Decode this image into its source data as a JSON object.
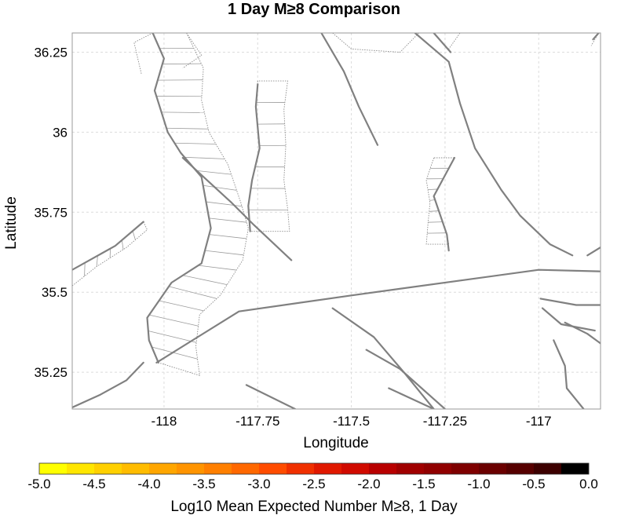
{
  "title": "1 Day M≥8 Comparison",
  "map": {
    "xlabel": "Longitude",
    "ylabel": "Latitude",
    "xlim": [
      -118.245,
      -116.835
    ],
    "ylim": [
      35.135,
      36.31
    ],
    "x_ticks": [
      {
        "value": -118,
        "label": "-118"
      },
      {
        "value": -117.75,
        "label": "-117.75"
      },
      {
        "value": -117.5,
        "label": "-117.5"
      },
      {
        "value": -117.25,
        "label": "-117.25"
      },
      {
        "value": -117,
        "label": "-117"
      }
    ],
    "y_ticks": [
      {
        "value": 35.25,
        "label": "35.25"
      },
      {
        "value": 35.5,
        "label": "35.5"
      },
      {
        "value": 35.75,
        "label": "35.75"
      },
      {
        "value": 36,
        "label": "36"
      },
      {
        "value": 36.25,
        "label": "36.25"
      }
    ],
    "grid": true,
    "colors": {
      "fault": "#808080",
      "outline": "#8a8a8a",
      "grid": "#dcdcdc",
      "frame": "#9a9a9a"
    },
    "faults": [
      [
        [
          -118.03,
          36.31
        ],
        [
          -118.0,
          36.23
        ],
        [
          -118.025,
          36.13
        ],
        [
          -117.99,
          36.0
        ],
        [
          -117.955,
          35.935
        ],
        [
          -117.9,
          35.86
        ],
        [
          -117.875,
          35.7
        ],
        [
          -117.9,
          35.59
        ],
        [
          -117.98,
          35.53
        ],
        [
          -118.045,
          35.42
        ],
        [
          -118.04,
          35.35
        ],
        [
          -118.015,
          35.28
        ]
      ],
      [
        [
          -117.95,
          35.92
        ],
        [
          -117.82,
          35.78
        ],
        [
          -117.76,
          35.71
        ],
        [
          -117.66,
          35.6
        ]
      ],
      [
        [
          -117.75,
          36.15
        ],
        [
          -117.755,
          36.08
        ],
        [
          -117.745,
          35.95
        ],
        [
          -117.765,
          35.85
        ],
        [
          -117.775,
          35.77
        ],
        [
          -117.77,
          35.69
        ]
      ],
      [
        [
          -117.58,
          36.31
        ],
        [
          -117.52,
          36.19
        ],
        [
          -117.48,
          36.08
        ],
        [
          -117.43,
          35.96
        ]
      ],
      [
        [
          -117.33,
          36.31
        ],
        [
          -117.24,
          36.22
        ],
        [
          -117.21,
          36.09
        ],
        [
          -117.17,
          35.95
        ],
        [
          -117.1,
          35.82
        ],
        [
          -117.05,
          35.74
        ],
        [
          -116.97,
          35.65
        ],
        [
          -116.91,
          35.615
        ]
      ],
      [
        [
          -117.28,
          36.31
        ],
        [
          -117.235,
          36.25
        ]
      ],
      [
        [
          -117.225,
          35.92
        ],
        [
          -117.28,
          35.8
        ],
        [
          -117.245,
          35.68
        ],
        [
          -117.24,
          35.63
        ]
      ],
      [
        [
          -118.02,
          35.28
        ],
        [
          -117.8,
          35.44
        ],
        [
          -117.5,
          35.49
        ],
        [
          -117.0,
          35.57
        ],
        [
          -116.835,
          35.565
        ]
      ],
      [
        [
          -118.245,
          35.57
        ],
        [
          -118.13,
          35.645
        ],
        [
          -118.055,
          35.72
        ]
      ],
      [
        [
          -118.245,
          35.14
        ],
        [
          -118.17,
          35.18
        ],
        [
          -118.1,
          35.225
        ],
        [
          -118.055,
          35.28
        ]
      ],
      [
        [
          -117.78,
          35.21
        ],
        [
          -117.65,
          35.135
        ]
      ],
      [
        [
          -117.46,
          35.32
        ],
        [
          -117.37,
          35.26
        ],
        [
          -117.25,
          35.135
        ]
      ],
      [
        [
          -117.4,
          35.2
        ],
        [
          -117.28,
          35.135
        ]
      ],
      [
        [
          -117.55,
          35.45
        ],
        [
          -117.44,
          35.36
        ],
        [
          -117.36,
          35.25
        ],
        [
          -117.28,
          35.135
        ]
      ],
      [
        [
          -116.995,
          35.48
        ],
        [
          -116.9,
          35.46
        ],
        [
          -116.835,
          35.46
        ]
      ],
      [
        [
          -116.99,
          35.45
        ],
        [
          -116.94,
          35.4
        ],
        [
          -116.85,
          35.38
        ]
      ],
      [
        [
          -116.93,
          35.405
        ],
        [
          -116.87,
          35.37
        ],
        [
          -116.835,
          35.34
        ]
      ],
      [
        [
          -116.96,
          35.35
        ],
        [
          -116.93,
          35.27
        ],
        [
          -116.925,
          35.2
        ],
        [
          -116.88,
          35.135
        ]
      ],
      [
        [
          -116.835,
          35.64
        ],
        [
          -116.87,
          35.615
        ]
      ],
      [
        [
          -116.84,
          36.31
        ],
        [
          -116.855,
          36.29
        ]
      ]
    ],
    "zones": [
      {
        "left": [
          [
            -118.03,
            36.31
          ],
          [
            -118.0,
            36.23
          ],
          [
            -118.025,
            36.13
          ],
          [
            -117.99,
            36.0
          ],
          [
            -117.955,
            35.935
          ],
          [
            -117.9,
            35.86
          ],
          [
            -117.875,
            35.7
          ],
          [
            -117.9,
            35.59
          ],
          [
            -117.98,
            35.53
          ],
          [
            -118.045,
            35.42
          ],
          [
            -118.04,
            35.35
          ],
          [
            -118.015,
            35.28
          ]
        ],
        "right": [
          [
            -117.94,
            36.31
          ],
          [
            -117.895,
            36.2
          ],
          [
            -117.9,
            36.1
          ],
          [
            -117.88,
            36.0
          ],
          [
            -117.83,
            35.9
          ],
          [
            -117.795,
            35.78
          ],
          [
            -117.775,
            35.7
          ],
          [
            -117.79,
            35.6
          ],
          [
            -117.85,
            35.49
          ],
          [
            -117.905,
            35.43
          ],
          [
            -117.915,
            35.33
          ],
          [
            -117.905,
            35.24
          ]
        ],
        "rungs": 22
      },
      {
        "left": [
          [
            -117.75,
            36.16
          ],
          [
            -117.755,
            36.08
          ],
          [
            -117.745,
            35.95
          ],
          [
            -117.765,
            35.85
          ],
          [
            -117.775,
            35.77
          ],
          [
            -117.77,
            35.69
          ]
        ],
        "right": [
          [
            -117.67,
            36.16
          ],
          [
            -117.68,
            36.07
          ],
          [
            -117.675,
            35.96
          ],
          [
            -117.68,
            35.85
          ],
          [
            -117.67,
            35.76
          ],
          [
            -117.665,
            35.69
          ]
        ],
        "rungs": 7
      },
      {
        "left": [
          [
            -117.28,
            35.92
          ],
          [
            -117.3,
            35.85
          ],
          [
            -117.29,
            35.78
          ],
          [
            -117.295,
            35.72
          ],
          [
            -117.3,
            35.65
          ]
        ],
        "right": [
          [
            -117.225,
            35.92
          ],
          [
            -117.28,
            35.8
          ],
          [
            -117.245,
            35.68
          ],
          [
            -117.24,
            35.65
          ]
        ],
        "rungs": 8
      },
      {
        "left": [
          [
            -118.245,
            35.52
          ],
          [
            -118.18,
            35.58
          ],
          [
            -118.1,
            35.64
          ],
          [
            -118.045,
            35.695
          ]
        ],
        "right": [
          [
            -118.245,
            35.57
          ],
          [
            -118.13,
            35.645
          ],
          [
            -118.055,
            35.72
          ]
        ],
        "rungs": 6
      }
    ],
    "extra_outlines": [
      [
        [
          -118.03,
          36.31
        ],
        [
          -118.08,
          36.28
        ],
        [
          -118.06,
          36.18
        ]
      ],
      [
        [
          -117.94,
          36.31
        ],
        [
          -117.9,
          36.24
        ],
        [
          -117.95,
          36.2
        ]
      ],
      [
        [
          -117.55,
          36.31
        ],
        [
          -117.5,
          36.26
        ],
        [
          -117.37,
          36.25
        ],
        [
          -117.32,
          36.31
        ]
      ],
      [
        [
          -117.21,
          36.31
        ],
        [
          -117.24,
          36.26
        ]
      ],
      [
        [
          -116.84,
          36.31
        ],
        [
          -116.86,
          36.27
        ]
      ]
    ]
  },
  "colorbar": {
    "label": "Log10 Mean Expected Number M≥8, 1 Day",
    "min": -5.0,
    "max": 0.0,
    "tick_labels": [
      "-5.0",
      "-4.5",
      "-4.0",
      "-3.5",
      "-3.0",
      "-2.5",
      "-2.0",
      "-1.5",
      "-1.0",
      "-0.5",
      "0.0"
    ],
    "colors": [
      "#ffff00",
      "#ffe600",
      "#ffd000",
      "#ffbc00",
      "#ffa600",
      "#ff9400",
      "#ff7f00",
      "#ff6800",
      "#ff4c00",
      "#f03000",
      "#e01800",
      "#d00a00",
      "#b80000",
      "#a00000",
      "#900000",
      "#7e0000",
      "#6a0000",
      "#560000",
      "#3c0000",
      "#000000"
    ]
  }
}
